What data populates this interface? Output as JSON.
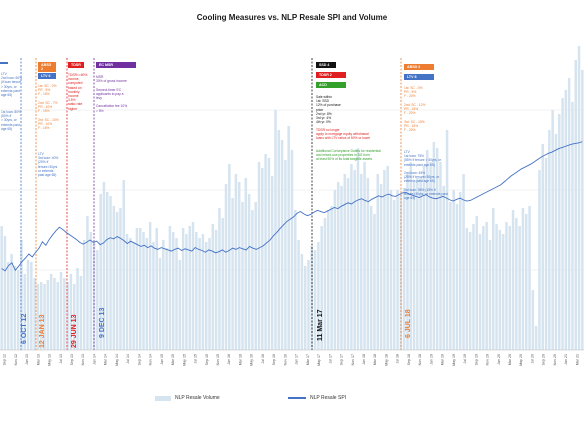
{
  "title": "Cooling Measures vs. NLP Resale SPI and Volume",
  "colors": {
    "bar": "#d6e4f0",
    "line": "#4472c4",
    "orange": "#ed7d31",
    "red": "#e02020",
    "purple": "#7030a0",
    "green": "#33a02c",
    "blue": "#4472c4",
    "black": "#111111"
  },
  "legend": {
    "volume": "NLP Resale Volume",
    "spi": "NLP Resale SPI"
  },
  "annotations": [
    {
      "key": "oct12",
      "date": "6 OCT 12",
      "color": "#4472c4"
    },
    {
      "key": "jan13",
      "date": "12 JAN 13",
      "color": "#ed7d31"
    },
    {
      "key": "jun13",
      "date": "29 JUN 13",
      "color": "#e02020"
    },
    {
      "key": "dec13",
      "date": "9 DEC 13",
      "color": "#4472c4"
    },
    {
      "key": "mar17",
      "date": "11 Mar 17",
      "color": "#111111"
    },
    {
      "key": "jul18",
      "date": "6 JUL 18",
      "color": "#ed7d31"
    }
  ],
  "tags": {
    "absd1": "ABSD 2",
    "ltv1": "LTV 6",
    "tdsr": "TDSR",
    "ssd_mar": "SSD 4",
    "tdsr2": "TDSR 2",
    "acd": "ACD",
    "absd3": "ABSD 3",
    "ltv8": "LTV 8",
    "ec_mssr": "EC MSR"
  },
  "notes": {
    "left_top": "LTV\n2nd loan: 60%\n(if loan tenure\n> 30yrs, or\nextends past\nage 65)",
    "left_mid": "1st loan: 80%\n(60% if\n> 30yrs, or\nextends past\nage 65)",
    "absd2": "1st: SC - 0%\nPR - 5%\nF - 15%\n\n2nd: SC - 7%\nPR - 10%\nF - 15%\n\n3rd: SC - 10%\nPR - 10%\nF - 15%",
    "ltv6": "LTV\n3rd loan: 40%\n(20% if\ntenure>30yrs\nor extends\npast age 65)",
    "tdsr": "TDSR<=60%\nincome,\ncomputed\nbased on\nmonthly\nincome\n3.5%\nstatic rate\nhigher",
    "ec": "MSR\n30% of gross income\n\nSecond-timer EC\napplicants to pay a\nlevy\n\nCancellation fee 10%\n> 5%",
    "ssd4": "Sale within\n1st: SSD\n12% of purchase\nprice\n2nd yr: 8%\n3rd yr: 4%\n4th yr: 0%",
    "tdsr2": "TDSR no longer\napply to mortgage equity withdrawal\nloans with LTV ratios of 50% or lower",
    "acd": "Additional Conveyance Duties for residential\nand mixed-use properties in SG from\nat least 50% of its total tangible assets",
    "absd3": "1st: SC - 0%\nPR - 5%\nF - 20%\n\n2nd: SC - 12%\nPR - 15%\nF - 20%\n\n3rd: SC - 15%\nPR - 15%\nF - 20%",
    "ltv8": "LTV\n1st loan: 75%\n(55% if tenure > 30yrs, or\nextends past age 65)\n\n2nd loan: 45%\n(25% if tenure>30yrs, or\nextends past age 65)\n\n3rd loan: 35% (15% if\ntenure>30yrs, or extends past\nage 65)"
  },
  "chart_data": {
    "type": "bar+line",
    "title": "Cooling Measures vs. NLP Resale SPI and Volume",
    "x_tick_labels": [
      "Sep 12",
      "Nov 12",
      "Jan 13",
      "Mar 13",
      "May 13",
      "Jul 13",
      "Sep 13",
      "Nov 13",
      "Jan 14",
      "Mar 14",
      "May 14",
      "Jul 14",
      "Sep 14",
      "Nov 14",
      "Jan 15",
      "Mar 15",
      "May 15",
      "Jul 15",
      "Sep 15",
      "Nov 15",
      "Jan 16",
      "Mar 16",
      "May 16",
      "Jul 16",
      "Sep 16",
      "Nov 16",
      "Jan 17",
      "Mar 17",
      "May 17",
      "Jul 17",
      "Sep 17",
      "Nov 17",
      "Jan 18",
      "Mar 18",
      "May 18",
      "Jul 18",
      "Sep 18",
      "Nov 18",
      "Jan 19",
      "Mar 19",
      "May 19",
      "Jul 19",
      "Sep 19",
      "Nov 19",
      "Jan 20",
      "Mar 20",
      "May 20",
      "Jul 20",
      "Sep 20",
      "Nov 20",
      "Jan 21",
      "Mar 21"
    ],
    "series": [
      {
        "name": "NLP Resale Volume",
        "type": "bar",
        "values": [
          62,
          57,
          44,
          48,
          42,
          40,
          55,
          38,
          45,
          44,
          36,
          33,
          34,
          33,
          35,
          38,
          36,
          34,
          39,
          36,
          34,
          38,
          33,
          41,
          37,
          55,
          67,
          59,
          54,
          50,
          78,
          84,
          79,
          77,
          72,
          69,
          71,
          85,
          58,
          56,
          54,
          61,
          61,
          59,
          56,
          64,
          54,
          61,
          46,
          55,
          51,
          62,
          59,
          56,
          45,
          61,
          58,
          62,
          64,
          59,
          56,
          58,
          54,
          56,
          63,
          60,
          71,
          66,
          83,
          93,
          76,
          88,
          84,
          74,
          86,
          78,
          70,
          74,
          94,
          91,
          98,
          96,
          87,
          120,
          110,
          105,
          95,
          112,
          100,
          70,
          55,
          48,
          42,
          45,
          52,
          50,
          54,
          62,
          66,
          70,
          72,
          80,
          84,
          82,
          88,
          86,
          93,
          90,
          101,
          88,
          94,
          86,
          72,
          68,
          88,
          83,
          90,
          92,
          80,
          75,
          80,
          78,
          81,
          88,
          94,
          84,
          86,
          86,
          92,
          100,
          94,
          104,
          101,
          94,
          82,
          110,
          74,
          80,
          73,
          79,
          88,
          61,
          59,
          63,
          67,
          58,
          62,
          64,
          55,
          71,
          63,
          60,
          58,
          64,
          62,
          70,
          66,
          62,
          71,
          68,
          72,
          30,
          12,
          90,
          103,
          96,
          110,
          120,
          108,
          118,
          126,
          130,
          136,
          124,
          145,
          152,
          140
        ]
      },
      {
        "name": "NLP Resale SPI",
        "type": "line",
        "values": [
          119,
          118.6,
          119.5,
          120,
          118.7,
          119.4,
          120.2,
          120.8,
          121.5,
          121,
          121.8,
          122.5,
          123.6,
          123,
          124,
          124.8,
          125.5,
          126.1,
          125.7,
          125.2,
          124.8,
          124.4,
          124,
          123.5,
          123.2,
          123.5,
          123.9,
          123.5,
          123.7,
          123.1,
          123.4,
          124,
          124.3,
          124.1,
          124.5,
          124.2,
          123.8,
          123.3,
          123.7,
          123.4,
          123.1,
          122.8,
          123,
          122.6,
          122.9,
          122.5,
          122.3,
          122.6,
          122.4,
          122.2,
          122,
          122.3,
          122.5,
          122.1,
          122.4,
          122.2,
          122,
          122.6,
          122.3,
          122.1,
          121.8,
          122.2,
          122,
          121.7,
          121.9,
          122.2,
          121.8,
          122.1,
          122.5,
          122.3,
          122.6,
          122.4,
          122.2,
          122.8,
          122.5,
          122.3,
          122.6,
          122.9,
          123.4,
          123.9,
          124.6,
          125.2,
          125.9,
          126.5,
          127.1,
          127.5,
          127.9,
          128.5,
          128.8,
          128.4,
          128.1,
          128.3,
          128.7,
          129,
          128.8,
          128.6,
          128.9,
          129.2,
          129.5,
          129.3,
          129.7,
          130,
          130.3,
          130.1,
          130.5,
          130.8,
          131,
          130.7,
          130.5,
          130.9,
          131.2,
          131.5,
          131.3,
          131.6,
          131.8,
          131.5,
          131.4,
          131.7,
          132,
          132.1,
          131.8,
          131.6,
          131.4,
          131.2,
          131.5,
          131.7,
          131.3,
          131.1,
          131,
          131.2,
          131.4,
          131.1,
          130.8,
          130.6,
          130.9,
          131.1,
          130.8,
          130.6,
          130.7,
          131,
          131.3,
          131.6,
          131.9,
          132.2,
          132.5,
          132.8,
          133.1,
          133.4,
          133.9,
          134.4,
          134.9,
          135.3,
          135.7,
          136.1,
          136.4,
          136.7,
          137,
          137.4,
          137.8,
          138.2,
          138.5,
          138.8,
          139,
          139.3,
          139.6,
          139.8,
          140,
          140.2,
          140.4,
          140.5,
          140.6,
          140.8
        ]
      }
    ],
    "grid": "horizontal",
    "legend_position": "bottom"
  }
}
